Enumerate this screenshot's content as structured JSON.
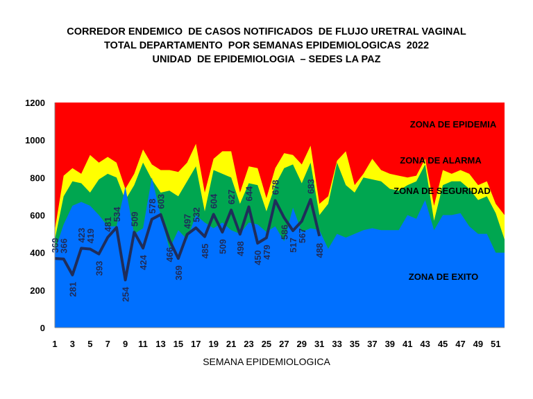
{
  "titles": [
    "CORREDOR ENDEMICO  DE CASOS NOTIFICADOS  DE FLUJO URETRAL VAGINAL",
    "TOTAL DEPARTAMENTO  POR SEMANAS EPIDEMIOLOGICAS  2022",
    "UNIDAD  DE EPIDEMIOLOGIA  – SEDES LA PAZ"
  ],
  "chart_data": {
    "type": "area",
    "title": "CORREDOR ENDEMICO  DE CASOS NOTIFICADOS  DE FLUJO URETRAL VAGINAL",
    "xlabel": "SEMANA EPIDEMIOLOGICA",
    "ylabel": "",
    "ylim": [
      0,
      1200
    ],
    "yticks": [
      0,
      200,
      400,
      600,
      800,
      1000,
      1200
    ],
    "xlim": [
      1,
      52
    ],
    "xticks": [
      1,
      3,
      5,
      7,
      9,
      11,
      13,
      15,
      17,
      19,
      21,
      23,
      25,
      27,
      29,
      31,
      33,
      35,
      37,
      39,
      41,
      43,
      45,
      47,
      49,
      51
    ],
    "colors": {
      "epidemia": "#ff0000",
      "alarma": "#ffff00",
      "seguridad": "#00a650",
      "exito": "#0070ff",
      "line": "#1f2d5a"
    },
    "zones": [
      {
        "name": "ZONA DE EPIDEMIA",
        "upper": 1200
      },
      {
        "name": "ZONA DE ALARMA",
        "upper": [
          520,
          810,
          850,
          820,
          920,
          880,
          910,
          880,
          740,
          820,
          950,
          870,
          840,
          840,
          830,
          880,
          980,
          720,
          900,
          940,
          940,
          720,
          860,
          850,
          690,
          850,
          930,
          920,
          870,
          970,
          660,
          700,
          890,
          940,
          760,
          820,
          900,
          840,
          820,
          810,
          800,
          810,
          900,
          650,
          840,
          820,
          840,
          820,
          760,
          780,
          660,
          600
        ]
      },
      {
        "name": "ZONA DE  SEGURIDAD",
        "upper": [
          470,
          700,
          780,
          770,
          720,
          790,
          820,
          800,
          680,
          760,
          880,
          790,
          720,
          730,
          700,
          780,
          860,
          620,
          840,
          820,
          800,
          660,
          770,
          760,
          620,
          760,
          850,
          870,
          770,
          880,
          600,
          660,
          880,
          760,
          720,
          800,
          790,
          780,
          740,
          730,
          760,
          780,
          870,
          570,
          760,
          780,
          780,
          740,
          680,
          700,
          610,
          470
        ]
      },
      {
        "name": "ZONA DE  EXITO",
        "upper": [
          410,
          550,
          650,
          670,
          650,
          600,
          540,
          540,
          750,
          500,
          530,
          800,
          600,
          420,
          520,
          470,
          600,
          560,
          530,
          560,
          520,
          500,
          560,
          550,
          510,
          540,
          460,
          640,
          510,
          530,
          520,
          420,
          500,
          480,
          500,
          520,
          530,
          520,
          520,
          520,
          600,
          580,
          680,
          520,
          600,
          600,
          610,
          540,
          500,
          500,
          400,
          400
        ]
      }
    ],
    "series": [
      {
        "name": "",
        "x": [
          1,
          2,
          3,
          4,
          5,
          6,
          7,
          8,
          9,
          10,
          11,
          12,
          13,
          14,
          15,
          16,
          17,
          18,
          19,
          20,
          21,
          22,
          23,
          24,
          25,
          26,
          27,
          28,
          29,
          30,
          31
        ],
        "values": [
          369,
          366,
          281,
          423,
          419,
          393,
          481,
          534,
          254,
          509,
          424,
          578,
          603,
          466,
          369,
          497,
          532,
          485,
          604,
          509,
          627,
          498,
          644,
          450,
          479,
          678,
          586,
          517,
          567,
          683,
          488
        ]
      }
    ],
    "data_labels": [
      "369",
      "366",
      "281",
      "423",
      "419",
      "393",
      "481",
      "534",
      "254",
      "509",
      "424",
      "578",
      "603",
      "466",
      "369",
      "497",
      "532",
      "485",
      "604",
      "509",
      "627",
      "498",
      "644",
      "450",
      "479",
      "678",
      "586",
      "517",
      "567",
      "683",
      "488"
    ]
  }
}
